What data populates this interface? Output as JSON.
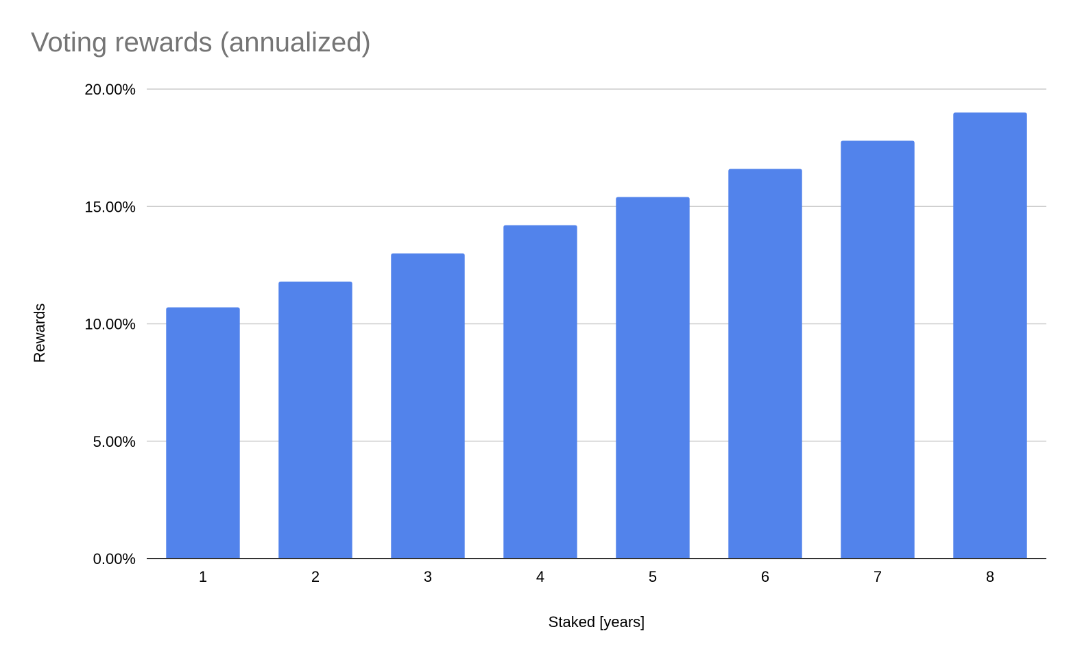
{
  "chart_data": {
    "type": "bar",
    "title": "Voting rewards (annualized)",
    "xlabel": "Staked [years]",
    "ylabel": "Rewards",
    "categories": [
      "1",
      "2",
      "3",
      "4",
      "5",
      "6",
      "7",
      "8"
    ],
    "values": [
      10.7,
      11.8,
      13.0,
      14.2,
      15.4,
      16.6,
      17.8,
      19.0
    ],
    "value_format": "percent",
    "ylim": [
      0,
      20
    ],
    "yticks": [
      0,
      5,
      10,
      15,
      20
    ],
    "ytick_labels": [
      "0.00%",
      "5.00%",
      "10.00%",
      "15.00%",
      "20.00%"
    ],
    "grid": true,
    "legend": "none",
    "colors": {
      "bar": "#5283EB",
      "grid": "#CCCCCC",
      "axis": "#333333",
      "title": "#757575",
      "text": "#000000"
    }
  }
}
